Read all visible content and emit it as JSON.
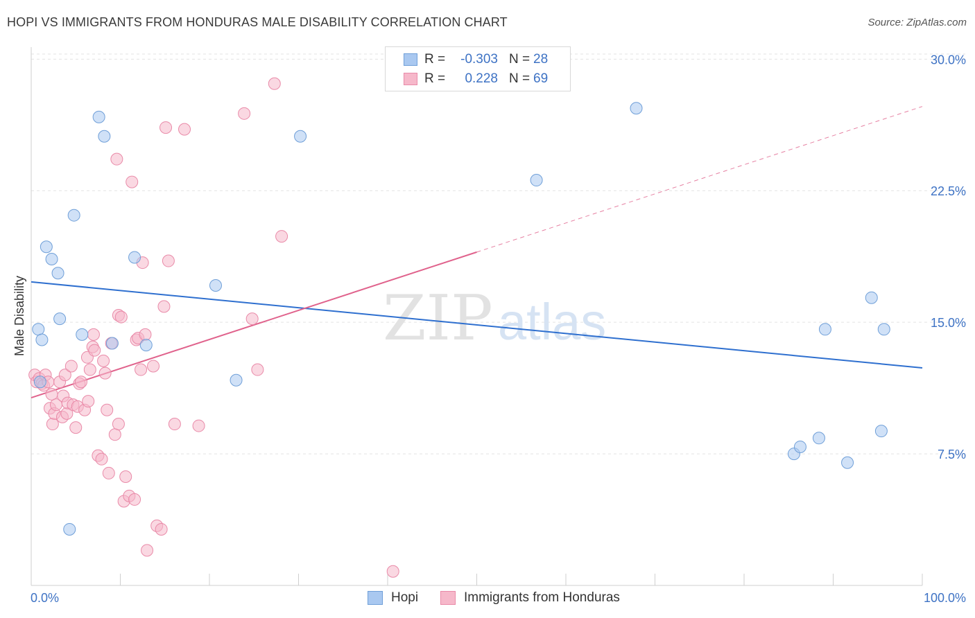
{
  "header": {
    "title": "HOPI VS IMMIGRANTS FROM HONDURAS MALE DISABILITY CORRELATION CHART",
    "source": "Source: ZipAtlas.com"
  },
  "legend": {
    "r_label": "R =",
    "n_label": "N =",
    "entries": [
      {
        "name": "Hopi",
        "r": "-0.303",
        "n": "28",
        "color": "#a9c8f0"
      },
      {
        "name": "Immigrants from Honduras",
        "r": "0.228",
        "n": "69",
        "color": "#f6b8ca"
      }
    ]
  },
  "chart_data": {
    "type": "scatter",
    "title": "HOPI VS IMMIGRANTS FROM HONDURAS MALE DISABILITY CORRELATION CHART",
    "xlabel": "",
    "ylabel": "Male Disability",
    "xlim": [
      0,
      100
    ],
    "ylim": [
      0,
      31
    ],
    "x_tick_labels": [
      "0.0%",
      "100.0%"
    ],
    "y_ticks": [
      7.5,
      15.0,
      22.5,
      30.0
    ],
    "y_tick_labels": [
      "7.5%",
      "15.0%",
      "22.5%",
      "30.0%"
    ],
    "grid": true,
    "watermark": {
      "zip": "ZIP",
      "atlas": "atlas"
    },
    "series": [
      {
        "name": "Hopi",
        "color": "#a9c8f0",
        "stroke": "#6f9fd8",
        "line_color": "#2e6fcf",
        "trend": {
          "x0": 0,
          "y0": 17.3,
          "x1": 100,
          "y1": 12.4,
          "dash_from": 100
        },
        "points": [
          [
            1.0,
            11.6
          ],
          [
            0.8,
            14.6
          ],
          [
            1.2,
            14.0
          ],
          [
            1.7,
            19.3
          ],
          [
            2.3,
            18.6
          ],
          [
            3.0,
            17.8
          ],
          [
            3.2,
            15.2
          ],
          [
            4.3,
            3.2
          ],
          [
            4.8,
            21.1
          ],
          [
            5.7,
            14.3
          ],
          [
            7.6,
            26.7
          ],
          [
            8.2,
            25.6
          ],
          [
            9.1,
            13.8
          ],
          [
            11.6,
            18.7
          ],
          [
            12.9,
            13.7
          ],
          [
            20.7,
            17.1
          ],
          [
            23.0,
            11.7
          ],
          [
            30.2,
            25.6
          ],
          [
            56.7,
            23.1
          ],
          [
            67.9,
            27.2
          ],
          [
            85.6,
            7.5
          ],
          [
            86.3,
            7.9
          ],
          [
            88.4,
            8.4
          ],
          [
            89.1,
            14.6
          ],
          [
            91.6,
            7.0
          ],
          [
            94.3,
            16.4
          ],
          [
            95.4,
            8.8
          ],
          [
            95.7,
            14.6
          ]
        ]
      },
      {
        "name": "Immigrants from Honduras",
        "color": "#f6b8ca",
        "stroke": "#e98aa8",
        "line_color": "#e0628c",
        "trend": {
          "x0": 0,
          "y0": 10.7,
          "x1": 100,
          "y1": 27.3,
          "dash_from": 50
        },
        "points": [
          [
            0.4,
            12.0
          ],
          [
            0.6,
            11.6
          ],
          [
            0.9,
            11.8
          ],
          [
            1.2,
            11.5
          ],
          [
            1.4,
            11.4
          ],
          [
            1.6,
            12.0
          ],
          [
            1.9,
            11.6
          ],
          [
            2.1,
            10.1
          ],
          [
            2.3,
            10.9
          ],
          [
            2.4,
            9.2
          ],
          [
            2.6,
            9.8
          ],
          [
            2.8,
            10.3
          ],
          [
            3.2,
            11.6
          ],
          [
            3.5,
            9.6
          ],
          [
            3.8,
            12.0
          ],
          [
            3.6,
            10.8
          ],
          [
            4.0,
            9.8
          ],
          [
            4.1,
            10.4
          ],
          [
            4.5,
            12.5
          ],
          [
            4.7,
            10.3
          ],
          [
            5.0,
            9.0
          ],
          [
            5.2,
            10.2
          ],
          [
            5.4,
            11.5
          ],
          [
            5.6,
            11.6
          ],
          [
            6.0,
            10.0
          ],
          [
            6.3,
            13.0
          ],
          [
            6.4,
            10.5
          ],
          [
            6.6,
            12.3
          ],
          [
            6.9,
            13.6
          ],
          [
            7.0,
            14.3
          ],
          [
            7.1,
            13.4
          ],
          [
            7.5,
            7.4
          ],
          [
            7.9,
            7.2
          ],
          [
            8.1,
            12.8
          ],
          [
            8.3,
            12.1
          ],
          [
            8.5,
            10.0
          ],
          [
            8.7,
            6.4
          ],
          [
            9.0,
            13.8
          ],
          [
            9.4,
            8.6
          ],
          [
            9.6,
            24.3
          ],
          [
            9.8,
            15.4
          ],
          [
            9.8,
            9.2
          ],
          [
            10.1,
            15.3
          ],
          [
            10.4,
            4.8
          ],
          [
            10.6,
            6.2
          ],
          [
            11.0,
            5.1
          ],
          [
            11.3,
            23.0
          ],
          [
            11.6,
            4.9
          ],
          [
            11.8,
            14.0
          ],
          [
            12.0,
            14.1
          ],
          [
            12.3,
            12.3
          ],
          [
            12.5,
            18.4
          ],
          [
            12.8,
            14.3
          ],
          [
            13.0,
            2.0
          ],
          [
            13.7,
            12.5
          ],
          [
            14.1,
            3.4
          ],
          [
            14.6,
            3.2
          ],
          [
            14.9,
            15.9
          ],
          [
            15.1,
            26.1
          ],
          [
            15.4,
            18.5
          ],
          [
            16.1,
            9.2
          ],
          [
            17.2,
            26.0
          ],
          [
            18.8,
            9.1
          ],
          [
            23.9,
            26.9
          ],
          [
            24.8,
            15.2
          ],
          [
            25.4,
            12.3
          ],
          [
            27.3,
            28.6
          ],
          [
            28.1,
            19.9
          ],
          [
            40.6,
            0.8
          ]
        ]
      }
    ]
  }
}
